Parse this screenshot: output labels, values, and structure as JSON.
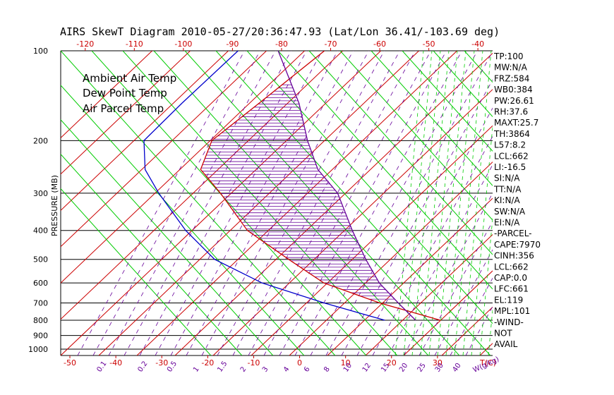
{
  "chart_data": {
    "type": "line",
    "title": "AIRS SkewT Diagram 2010-05-27/20:36:47.93 (Lat/Lon 36.41/-103.69 deg)",
    "ylabel": "PRESSURE (MB)",
    "xlabel": "T(C)",
    "mixing_ratio_unit": "W(g/kg)",
    "ylim": [
      1050,
      100
    ],
    "y_scale": "log",
    "xlim": [
      -52,
      42
    ],
    "top_axis_range": [
      -125,
      -37
    ],
    "pressure_ticks": [
      100,
      200,
      300,
      400,
      500,
      600,
      700,
      800,
      900,
      1000
    ],
    "top_ticks": [
      -120,
      -110,
      -100,
      -90,
      -80,
      -70,
      -60,
      -50,
      -40
    ],
    "bottom_ticks": [
      -50,
      -40,
      -30,
      -20,
      -10,
      0,
      10,
      20,
      30
    ],
    "mixing_ratio_labels": [
      "0.1",
      "0.2",
      "0.5",
      "1",
      "1.5",
      "2",
      "3",
      "4",
      "6",
      "8",
      "10",
      "12",
      "15",
      "20",
      "25",
      "30",
      "40"
    ],
    "legend": [
      {
        "label": "Ambient Air Temp",
        "color": "#cc0000"
      },
      {
        "label": "Dew Point Temp",
        "color": "#0000cc"
      },
      {
        "label": "Air Parcel Temp",
        "color": "#660099"
      }
    ],
    "series": [
      {
        "name": "Ambient Air Temp",
        "color": "#cc0000",
        "points": [
          [
            -52,
            100
          ],
          [
            -63,
            150
          ],
          [
            -71,
            200
          ],
          [
            -69,
            250
          ],
          [
            -58,
            300
          ],
          [
            -42,
            400
          ],
          [
            -23,
            500
          ],
          [
            -7,
            600
          ],
          [
            15,
            700
          ],
          [
            38,
            800
          ]
        ]
      },
      {
        "name": "Dew Point Temp",
        "color": "#0000cc",
        "points": [
          [
            -80,
            100
          ],
          [
            -88,
            150
          ],
          [
            -93,
            200
          ],
          [
            -87,
            250
          ],
          [
            -78,
            300
          ],
          [
            -62,
            400
          ],
          [
            -47,
            500
          ],
          [
            -27,
            600
          ],
          [
            -3,
            700
          ],
          [
            20,
            800
          ]
        ]
      },
      {
        "name": "Air Parcel Temp",
        "color": "#660099",
        "points": [
          [
            -67,
            100
          ],
          [
            -50,
            150
          ],
          [
            -40,
            200
          ],
          [
            -31,
            250
          ],
          [
            -20,
            300
          ],
          [
            -8,
            400
          ],
          [
            2,
            500
          ],
          [
            11,
            600
          ],
          [
            21,
            700
          ],
          [
            30,
            800
          ]
        ]
      }
    ],
    "stats": [
      "TP:100",
      "MW:N/A",
      "FRZ:584",
      "WB0:384",
      "PW:26.61",
      "RH:37.6",
      "MAXT:25.7",
      "TH:3864",
      "L57:8.2",
      "LCL:662",
      "LI:-16.5",
      "SI:N/A",
      "TT:N/A",
      "KI:N/A",
      "SW:N/A",
      "EI:N/A",
      "-PARCEL-",
      "CAPE:7970",
      "CINH:356",
      "LCL:662",
      "CAP:0.0",
      "LFC:661",
      "EL:119",
      "MPL:101",
      "-WIND-",
      "NOT",
      "AVAIL"
    ],
    "grid": true,
    "legend_position": "top-left"
  },
  "colors": {
    "isotherm": "#cc0000",
    "dry_adiabat": "#00cc00",
    "moist_adiabat": "#00cc00",
    "mixing_ratio": "#660099",
    "cape_hatch": "#660099"
  }
}
